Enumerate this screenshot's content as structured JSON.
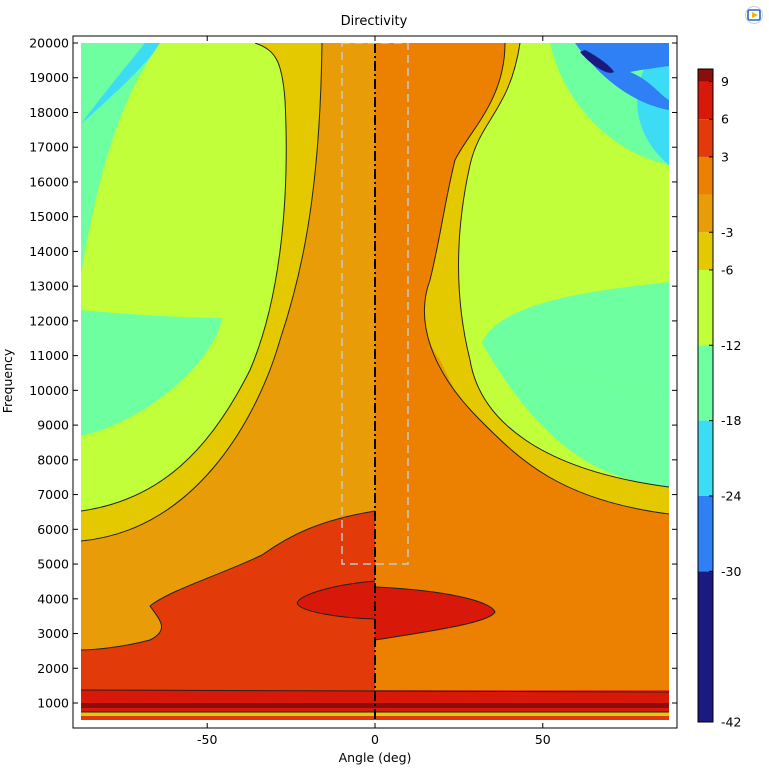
{
  "chart_data": {
    "type": "heatmap",
    "subtype": "filled-contour",
    "title": "Directivity",
    "xlabel": "Angle (deg)",
    "ylabel": "Frequency",
    "xlim": [
      -90,
      90
    ],
    "ylim": [
      400,
      20000
    ],
    "x_ticks": [
      -50,
      0,
      50
    ],
    "y_ticks": [
      1000,
      2000,
      3000,
      4000,
      5000,
      6000,
      7000,
      8000,
      9000,
      10000,
      11000,
      12000,
      13000,
      14000,
      15000,
      16000,
      17000,
      18000,
      19000,
      20000
    ],
    "colorbar": {
      "range": [
        -42,
        10
      ],
      "tick_values": [
        9,
        6,
        3,
        -3,
        -6,
        -12,
        -18,
        -24,
        -30,
        -42
      ],
      "levels": [
        {
          "from": -42,
          "to": -30,
          "color": "#1a1a80"
        },
        {
          "from": -30,
          "to": -24,
          "color": "#2f80f5"
        },
        {
          "from": -24,
          "to": -18,
          "color": "#3cdcf5"
        },
        {
          "from": -18,
          "to": -12,
          "color": "#6effa0"
        },
        {
          "from": -12,
          "to": -6,
          "color": "#c0ff3a"
        },
        {
          "from": -6,
          "to": -3,
          "color": "#e4c800"
        },
        {
          "from": -3,
          "to": 0,
          "color": "#e89c08"
        },
        {
          "from": 0,
          "to": 3,
          "color": "#ec8000"
        },
        {
          "from": 3,
          "to": 6,
          "color": "#e23a08"
        },
        {
          "from": 6,
          "to": 9,
          "color": "#d81808"
        },
        {
          "from": 9,
          "to": 10,
          "color": "#8c0d0d"
        }
      ]
    },
    "grid": false,
    "annotations": [
      {
        "kind": "dash-dot center line",
        "x": 0
      },
      {
        "kind": "dashed rectangle",
        "x": [
          -10,
          10
        ],
        "y": [
          5000,
          20000
        ],
        "color": "#c8c8c8"
      }
    ]
  },
  "ui": {
    "corner_icon": "screen-share-icon"
  }
}
